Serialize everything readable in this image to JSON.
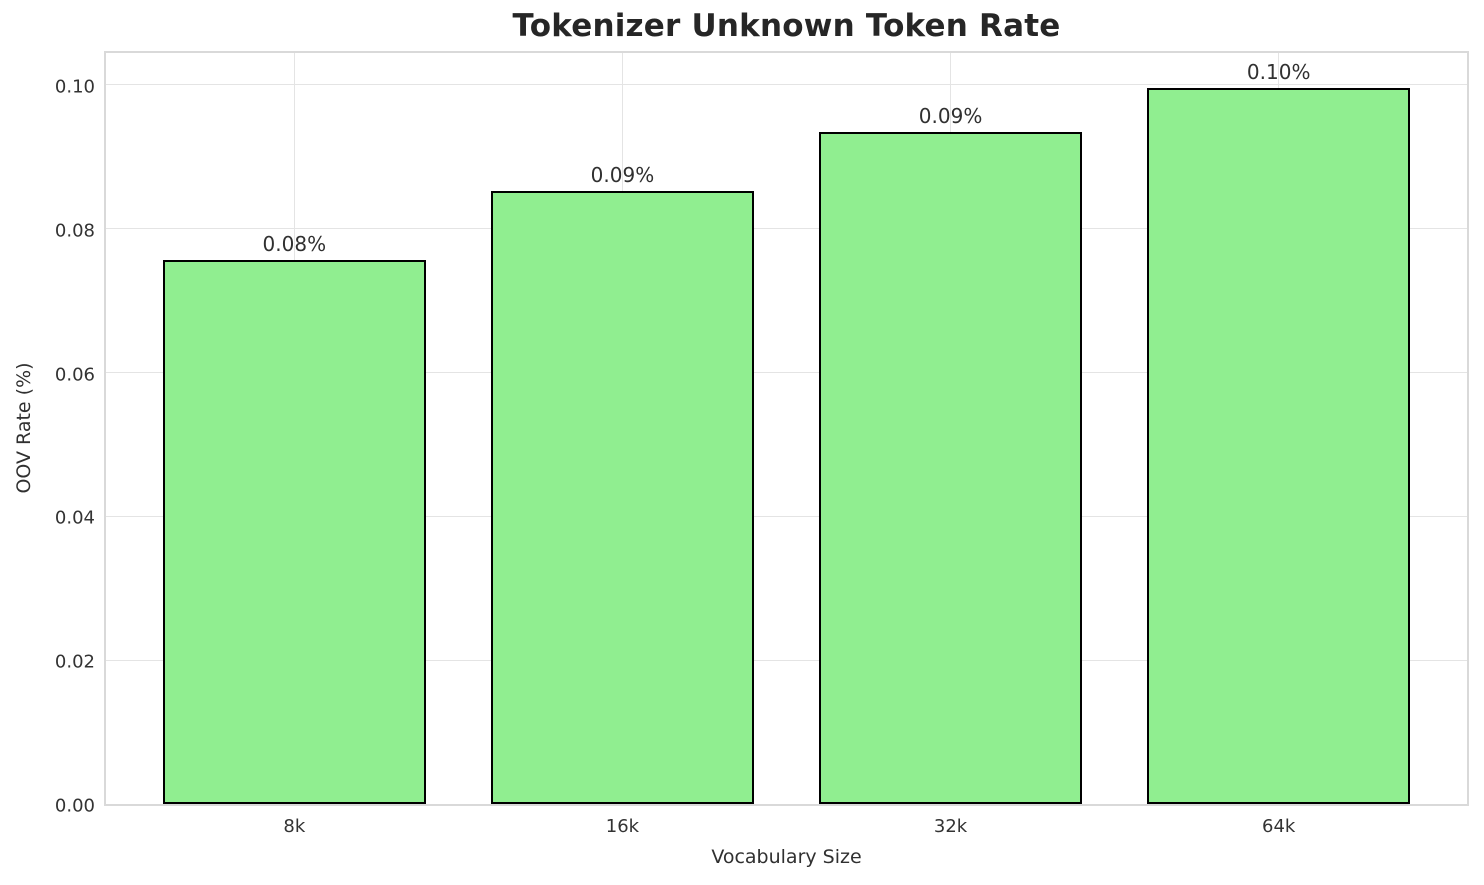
{
  "chart_data": {
    "type": "bar",
    "title": "Tokenizer Unknown Token Rate",
    "xlabel": "Vocabulary Size",
    "ylabel": "OOV Rate (%)",
    "categories": [
      "8k",
      "16k",
      "32k",
      "64k"
    ],
    "values": [
      0.0756,
      0.0853,
      0.0935,
      0.0996
    ],
    "bar_labels": [
      "0.08%",
      "0.09%",
      "0.09%",
      "0.10%"
    ],
    "yticks": [
      0.0,
      0.02,
      0.04,
      0.06,
      0.08,
      0.1
    ],
    "ytick_labels": [
      "0.00",
      "0.02",
      "0.04",
      "0.06",
      "0.08",
      "0.10"
    ],
    "ylim": [
      0,
      0.105
    ],
    "xlim": [
      -0.58,
      3.58
    ],
    "bar_width_units": 0.8,
    "grid": true,
    "legend": null,
    "colors": {
      "bar_fill": "#90EE90",
      "bar_edge": "#000000",
      "grid": "#e4e4e4",
      "spine": "#d9d9d9",
      "title_text": "#262626",
      "tick_text": "#333333",
      "axis_label_text": "#303030",
      "background": "#ffffff"
    }
  }
}
